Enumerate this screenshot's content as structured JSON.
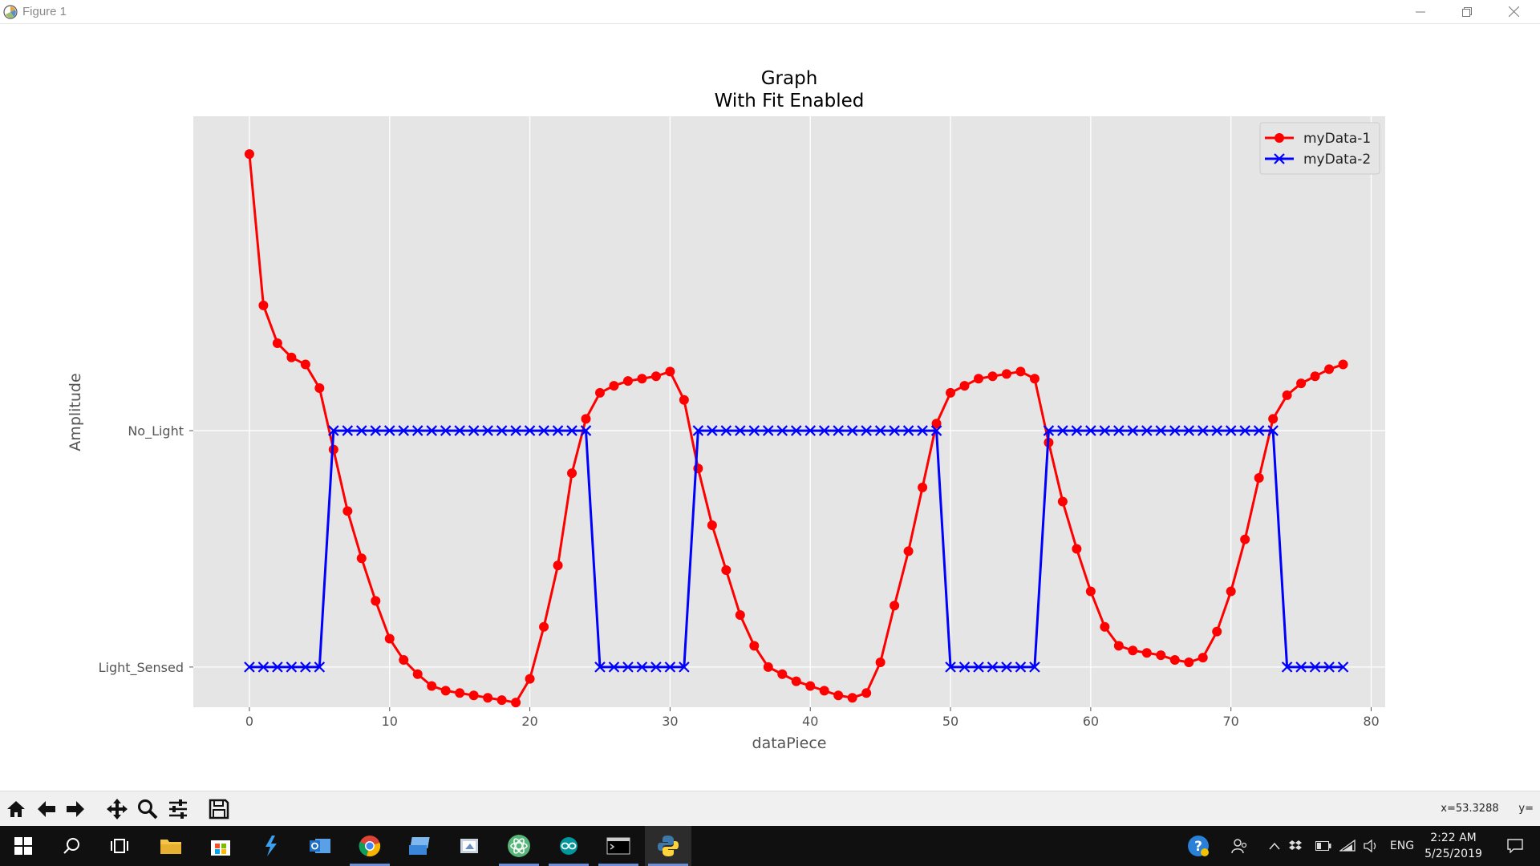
{
  "window": {
    "title": "Figure 1",
    "minimize_icon": "minimize-icon",
    "maximize_icon": "restore-icon",
    "close_icon": "close-icon"
  },
  "chart_data": {
    "type": "line",
    "title": "Graph\nWith Fit Enabled",
    "title_line1": "Graph",
    "title_line2": "With Fit Enabled",
    "xlabel": "dataPiece",
    "ylabel": "Amplitude",
    "xlim": [
      -4,
      81
    ],
    "xticks": [
      0,
      10,
      20,
      30,
      40,
      50,
      60,
      70,
      80
    ],
    "yticks": [
      {
        "label": "No_Light",
        "value": 1
      },
      {
        "label": "Light_Sensed",
        "value": 0
      }
    ],
    "ylim": [
      -0.17,
      2.33
    ],
    "grid": true,
    "legend_position": "top-right",
    "background": "#e5e5e5",
    "series": [
      {
        "name": "myData-1",
        "color": "#ff0000",
        "marker": "circle",
        "x": [
          0,
          1,
          2,
          3,
          4,
          5,
          6,
          7,
          8,
          9,
          10,
          11,
          12,
          13,
          14,
          15,
          16,
          17,
          18,
          19,
          20,
          21,
          22,
          23,
          24,
          25,
          26,
          27,
          28,
          29,
          30,
          31,
          32,
          33,
          34,
          35,
          36,
          37,
          38,
          39,
          40,
          41,
          42,
          43,
          44,
          45,
          46,
          47,
          48,
          49,
          50,
          51,
          52,
          53,
          54,
          55,
          56,
          57,
          58,
          59,
          60,
          61,
          62,
          63,
          64,
          65,
          66,
          67,
          68,
          69,
          70,
          71,
          72,
          73,
          74,
          75,
          76,
          77,
          78
        ],
        "y": [
          2.17,
          1.53,
          1.37,
          1.31,
          1.28,
          1.18,
          0.92,
          0.66,
          0.46,
          0.28,
          0.12,
          0.03,
          -0.03,
          -0.08,
          -0.1,
          -0.11,
          -0.12,
          -0.13,
          -0.14,
          -0.15,
          -0.05,
          0.17,
          0.43,
          0.82,
          1.05,
          1.16,
          1.19,
          1.21,
          1.22,
          1.23,
          1.25,
          1.13,
          0.84,
          0.6,
          0.41,
          0.22,
          0.09,
          0.0,
          -0.03,
          -0.06,
          -0.08,
          -0.1,
          -0.12,
          -0.13,
          -0.11,
          0.02,
          0.26,
          0.49,
          0.76,
          1.03,
          1.16,
          1.19,
          1.22,
          1.23,
          1.24,
          1.25,
          1.22,
          0.95,
          0.7,
          0.5,
          0.32,
          0.17,
          0.09,
          0.07,
          0.06,
          0.05,
          0.03,
          0.02,
          0.04,
          0.15,
          0.32,
          0.54,
          0.8,
          1.05,
          1.15,
          1.2,
          1.23,
          1.26,
          1.28
        ]
      },
      {
        "name": "myData-2",
        "color": "#0000ff",
        "marker": "x",
        "x": [
          0,
          1,
          2,
          3,
          4,
          5,
          6,
          7,
          8,
          9,
          10,
          11,
          12,
          13,
          14,
          15,
          16,
          17,
          18,
          19,
          20,
          21,
          22,
          23,
          24,
          25,
          26,
          27,
          28,
          29,
          30,
          31,
          32,
          33,
          34,
          35,
          36,
          37,
          38,
          39,
          40,
          41,
          42,
          43,
          44,
          45,
          46,
          47,
          48,
          49,
          50,
          51,
          52,
          53,
          54,
          55,
          56,
          57,
          58,
          59,
          60,
          61,
          62,
          63,
          64,
          65,
          66,
          67,
          68,
          69,
          70,
          71,
          72,
          73,
          74,
          75,
          76,
          77,
          78
        ],
        "y": [
          0,
          0,
          0,
          0,
          0,
          0,
          1,
          1,
          1,
          1,
          1,
          1,
          1,
          1,
          1,
          1,
          1,
          1,
          1,
          1,
          1,
          1,
          1,
          1,
          1,
          0,
          0,
          0,
          0,
          0,
          0,
          0,
          1,
          1,
          1,
          1,
          1,
          1,
          1,
          1,
          1,
          1,
          1,
          1,
          1,
          1,
          1,
          1,
          1,
          1,
          0,
          0,
          0,
          0,
          0,
          0,
          0,
          1,
          1,
          1,
          1,
          1,
          1,
          1,
          1,
          1,
          1,
          1,
          1,
          1,
          1,
          1,
          1,
          1,
          0,
          0,
          0,
          0,
          0
        ]
      }
    ]
  },
  "toolbar": {
    "buttons": [
      {
        "name": "home-icon"
      },
      {
        "name": "back-arrow-icon"
      },
      {
        "name": "forward-arrow-icon"
      },
      {
        "name": "pan-icon"
      },
      {
        "name": "zoom-icon"
      },
      {
        "name": "configure-subplots-icon"
      },
      {
        "name": "save-icon"
      }
    ],
    "coords": "x=53.3288      y="
  },
  "taskbar": {
    "apps": [
      "windows-start-icon",
      "search-icon",
      "task-view-icon",
      "file-explorer-icon",
      "store-icon",
      "visual-studio-icon",
      "outlook-icon",
      "chrome-icon",
      "remote-desktop-icon",
      "paint-icon",
      "atom-icon",
      "arduino-icon",
      "terminal-icon",
      "python-icon"
    ],
    "tray": {
      "language": "ENG",
      "time": "2:22 AM",
      "date": "5/25/2019"
    }
  }
}
